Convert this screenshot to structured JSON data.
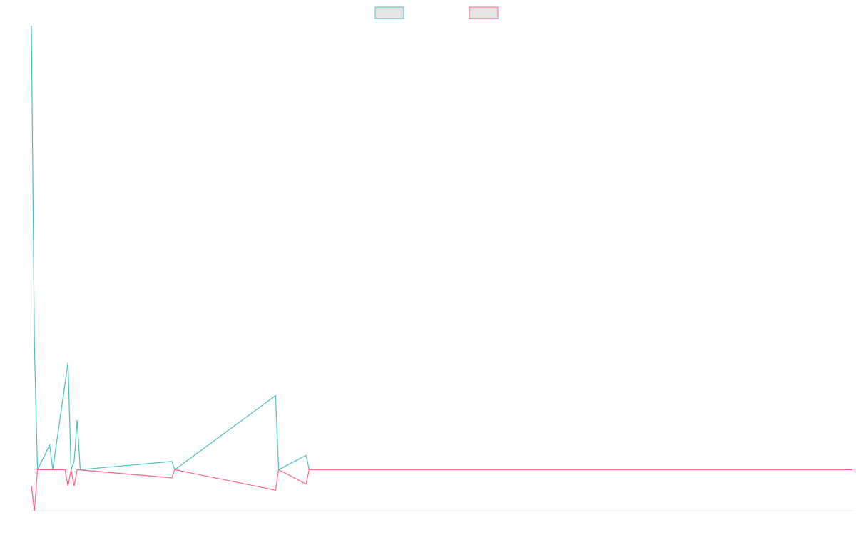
{
  "chart_data": {
    "type": "line",
    "title": "",
    "xlabel": "",
    "ylabel": "",
    "legend": {
      "position": "top-center"
    },
    "grid": false,
    "x_count": 270,
    "ylim": [
      -10,
      108
    ],
    "series": [
      {
        "color": "#4bc0c0",
        "fill": "#e5e5e5",
        "points": [
          [
            0,
            108
          ],
          [
            1,
            30
          ],
          [
            2,
            0
          ],
          [
            6,
            6
          ],
          [
            7,
            0
          ],
          [
            12,
            26
          ],
          [
            13,
            0
          ],
          [
            14,
            2
          ],
          [
            15,
            12
          ],
          [
            16,
            0
          ],
          [
            46,
            2
          ],
          [
            47,
            0
          ],
          [
            80,
            18
          ],
          [
            81,
            0
          ],
          [
            90,
            3.5
          ],
          [
            91,
            0
          ],
          [
            269,
            0
          ]
        ]
      },
      {
        "color": "#ff6384",
        "fill": "#e5e5e5",
        "points": [
          [
            0,
            -4
          ],
          [
            1,
            -10
          ],
          [
            2,
            0
          ],
          [
            11,
            0
          ],
          [
            12,
            -4
          ],
          [
            13,
            0
          ],
          [
            14,
            -4
          ],
          [
            15,
            0
          ],
          [
            46,
            -2
          ],
          [
            47,
            0
          ],
          [
            80,
            -5
          ],
          [
            81,
            0
          ],
          [
            90,
            -3.5
          ],
          [
            91,
            0
          ],
          [
            269,
            0
          ]
        ]
      }
    ]
  }
}
